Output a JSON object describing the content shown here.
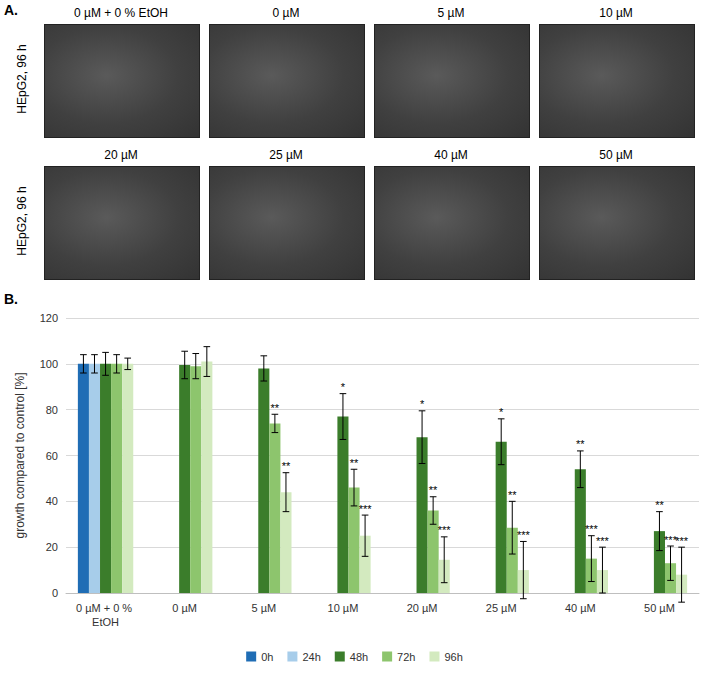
{
  "panel_a": {
    "label": "A.",
    "row_labels": [
      "HEpG2, 96 h",
      "HEpG2, 96 h"
    ],
    "image_titles": [
      "0 µM + 0 % EtOH",
      "0 µM",
      "5 µM",
      "10 µM",
      "20 µM",
      "25 µM",
      "40 µM",
      "50 µM"
    ]
  },
  "chart_data": {
    "type": "bar",
    "panel_label": "B.",
    "y_label": "growth compared to control [%]",
    "categories": [
      "0 µM + 0 % EtOH",
      "0 µM",
      "5 µM",
      "10 µM",
      "20 µM",
      "25 µM",
      "40 µM",
      "50 µM"
    ],
    "ylim": [
      0,
      120
    ],
    "yticks": [
      0,
      20,
      40,
      60,
      80,
      100,
      120
    ],
    "grid": true,
    "legend": "bottom",
    "series": [
      {
        "name": "0h",
        "color": "#1f6db5",
        "values": [
          100,
          null,
          null,
          null,
          null,
          null,
          null,
          null
        ],
        "errors": [
          4,
          null,
          null,
          null,
          null,
          null,
          null,
          null
        ],
        "significance": [
          null,
          null,
          null,
          null,
          null,
          null,
          null,
          null
        ]
      },
      {
        "name": "24h",
        "color": "#a7cdea",
        "values": [
          100,
          null,
          null,
          null,
          null,
          null,
          null,
          null
        ],
        "errors": [
          4,
          null,
          null,
          null,
          null,
          null,
          null,
          null
        ],
        "significance": [
          null,
          null,
          null,
          null,
          null,
          null,
          null,
          null
        ]
      },
      {
        "name": "48h",
        "color": "#3b7d2b",
        "values": [
          100,
          99.5,
          98,
          77,
          68,
          66,
          54,
          27
        ],
        "errors": [
          5,
          6,
          5.5,
          10,
          11.5,
          10,
          8,
          8.5
        ],
        "significance": [
          null,
          null,
          null,
          "*",
          "*",
          "*",
          "**",
          "**"
        ]
      },
      {
        "name": "72h",
        "color": "#8dc56d",
        "values": [
          100,
          99,
          74,
          46,
          36,
          28.5,
          15,
          13
        ],
        "errors": [
          4,
          5.5,
          4,
          8,
          6,
          11.5,
          10,
          7.5
        ],
        "significance": [
          null,
          null,
          "**",
          "**",
          "**",
          "**",
          "***",
          "***"
        ]
      },
      {
        "name": "96h",
        "color": "#d3eabf",
        "values": [
          100,
          101,
          44,
          25,
          14.5,
          10,
          10,
          8
        ],
        "errors": [
          2.5,
          6.5,
          8.5,
          9,
          10,
          12.5,
          10,
          12
        ],
        "significance": [
          null,
          null,
          "**",
          "***",
          "***",
          "***",
          "***",
          "***"
        ]
      }
    ]
  }
}
